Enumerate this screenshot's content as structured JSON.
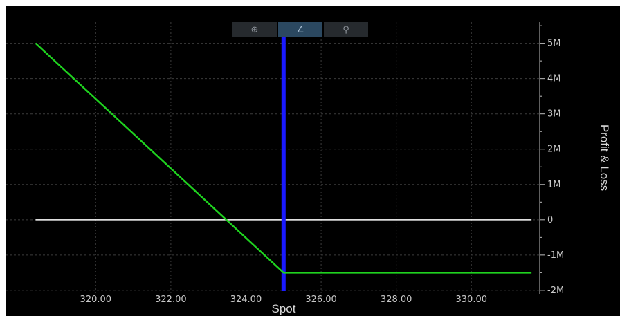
{
  "toolbar": {
    "buttons": [
      {
        "name": "pan-button",
        "icon": "crosshair-move-icon",
        "glyph": "⊕",
        "active": false
      },
      {
        "name": "draw-line-button",
        "icon": "line-tool-icon",
        "glyph": "∠",
        "active": true
      },
      {
        "name": "zoom-button",
        "icon": "magnifier-icon",
        "glyph": "⚲",
        "active": false
      }
    ]
  },
  "colors": {
    "background": "#000000",
    "pnl_line": "#1fd21f",
    "zero_line": "#ffffff",
    "spot_marker": "#1a1aff",
    "grid": "#3c3c3c",
    "axis": "#bfbfbf"
  },
  "chart_data": {
    "type": "line",
    "xlabel": "Spot",
    "ylabel": "Profit & Loss",
    "xlim": [
      317.6,
      331.8
    ],
    "ylim": [
      -2.1,
      5.6
    ],
    "x_ticks": [
      320,
      322,
      324,
      326,
      328,
      330
    ],
    "x_tick_labels": [
      "320.00",
      "322.00",
      "324.00",
      "326.00",
      "328.00",
      "330.00"
    ],
    "y_ticks": [
      -2,
      -1,
      0,
      1,
      2,
      3,
      4,
      5
    ],
    "y_tick_labels": [
      "-2M",
      "-1M",
      "0",
      "1M",
      "2M",
      "3M",
      "4M",
      "5M"
    ],
    "y_unit": "M",
    "grid": true,
    "series": [
      {
        "values": [
          {
            "x": 318.4,
            "y": 5.0
          },
          {
            "x": 325.0,
            "y": -1.5
          },
          {
            "x": 331.6,
            "y": -1.5
          }
        ]
      }
    ],
    "zero_line": {
      "y": 0,
      "x_from": 318.4,
      "x_to": 331.6
    },
    "spot_marker_x": 325.0
  }
}
